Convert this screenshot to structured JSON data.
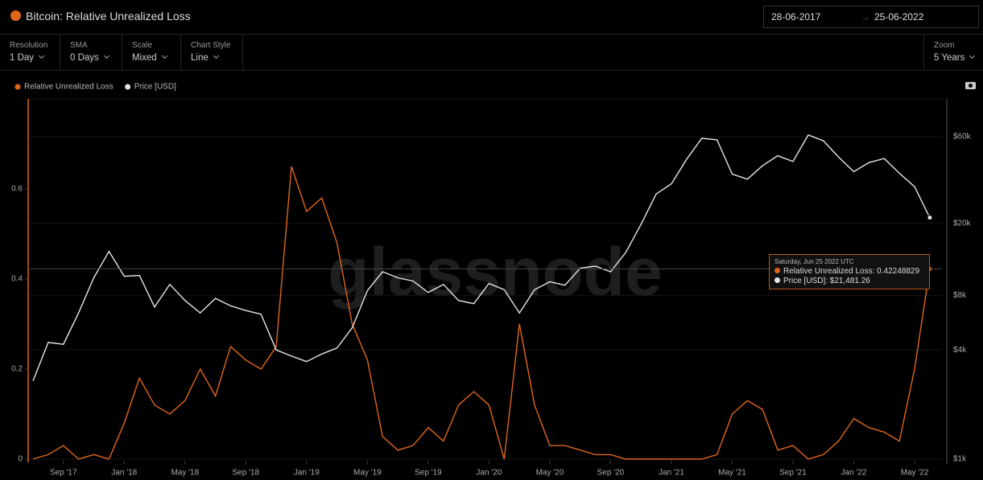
{
  "header": {
    "title": "Bitcoin: Relative Unrealized Loss",
    "date_from": "28-06-2017",
    "date_to": "25-06-2022"
  },
  "controls": [
    {
      "label": "Resolution",
      "value": "1 Day"
    },
    {
      "label": "SMA",
      "value": "0 Days"
    },
    {
      "label": "Scale",
      "value": "Mixed"
    },
    {
      "label": "Chart Style",
      "value": "Line"
    }
  ],
  "zoom": {
    "label": "Zoom",
    "value": "5 Years"
  },
  "watermark": "glassnode",
  "tooltip": {
    "date": "Saturday, Jun 25 2022 UTC",
    "lines": [
      "Relative Unrealized Loss: 0.42248829",
      "Price [USD]: $21,481.26"
    ]
  },
  "chart_data": {
    "type": "line",
    "categories": [
      null,
      null,
      "Sep '17",
      null,
      null,
      null,
      "Jan '18",
      null,
      null,
      null,
      "May '18",
      null,
      null,
      null,
      "Sep '18",
      null,
      null,
      null,
      "Jan '19",
      null,
      null,
      null,
      "May '19",
      null,
      null,
      null,
      "Sep '19",
      null,
      null,
      null,
      "Jan '20",
      null,
      null,
      null,
      "May '20",
      null,
      null,
      null,
      "Sep '20",
      null,
      null,
      null,
      "Jan '21",
      null,
      null,
      null,
      "May '21",
      null,
      null,
      null,
      "Sep '21",
      null,
      null,
      null,
      "Jan '22",
      null,
      null,
      null,
      "May '22",
      null
    ],
    "series": [
      {
        "name": "Relative Unrealized Loss",
        "color": "#e0661a",
        "values": [
          0.0,
          0.01,
          0.03,
          0.0,
          0.01,
          0.0,
          0.08,
          0.18,
          0.12,
          0.1,
          0.13,
          0.2,
          0.14,
          0.25,
          0.22,
          0.2,
          0.25,
          0.65,
          0.55,
          0.58,
          0.48,
          0.3,
          0.22,
          0.05,
          0.02,
          0.03,
          0.07,
          0.04,
          0.12,
          0.15,
          0.12,
          0.0,
          0.3,
          0.12,
          0.03,
          0.03,
          0.02,
          0.01,
          0.01,
          0.0,
          0.0,
          0.0,
          0.0,
          0.0,
          0.0,
          0.01,
          0.1,
          0.13,
          0.11,
          0.02,
          0.03,
          0.0,
          0.01,
          0.04,
          0.09,
          0.07,
          0.06,
          0.04,
          0.2,
          0.42248829
        ]
      },
      {
        "name": "Price [USD]",
        "color": "#e6e6e6",
        "axis": "y2",
        "values": [
          2700,
          4400,
          4300,
          6400,
          10000,
          14000,
          10200,
          10300,
          6900,
          9200,
          7500,
          6400,
          7700,
          7000,
          6600,
          6300,
          4000,
          3700,
          3450,
          3800,
          4100,
          5300,
          8500,
          10800,
          10000,
          9600,
          8300,
          9200,
          7500,
          7200,
          9300,
          8600,
          6400,
          8600,
          9500,
          9100,
          11300,
          11600,
          10800,
          13800,
          19700,
          29000,
          33000,
          45000,
          58800,
          57700,
          37300,
          35000,
          41500,
          47100,
          43800,
          61300,
          57000,
          46300,
          38500,
          43200,
          45500,
          37700,
          31800,
          21481.26
        ]
      }
    ],
    "ylim": [
      0,
      0.8
    ],
    "yticks": [
      0,
      0.2,
      0.4,
      0.6
    ],
    "y2lim": [
      1000,
      97000
    ],
    "y2log": true,
    "y2ticks": [
      {
        "value": 1000,
        "label": "$1k"
      },
      {
        "value": 4000,
        "label": "$4k"
      },
      {
        "value": 8000,
        "label": "$8k"
      },
      {
        "value": 20000,
        "label": "$20k"
      },
      {
        "value": 60000,
        "label": "$60k"
      }
    ],
    "legend": "top-left"
  }
}
